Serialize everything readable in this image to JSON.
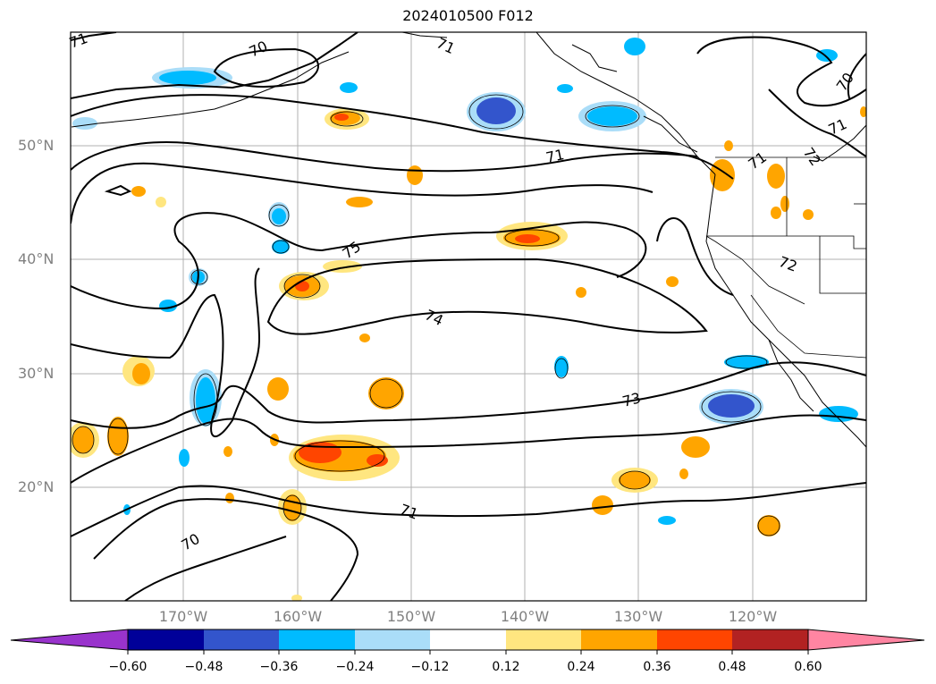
{
  "title": "2024010500 F012",
  "lat_labels": [
    "50°N",
    "40°N",
    "30°N",
    "20°N"
  ],
  "lon_labels": [
    "170°W",
    "160°W",
    "150°W",
    "140°W",
    "130°W",
    "120°W"
  ],
  "contour_labels": [
    "71",
    "70",
    "71",
    "70",
    "71",
    "71",
    "72",
    "71",
    "75",
    "74",
    "72",
    "73",
    "71",
    "70"
  ],
  "colorbar": {
    "ticks": [
      "−0.60",
      "−0.48",
      "−0.36",
      "−0.24",
      "−0.12",
      "0.12",
      "0.24",
      "0.36",
      "0.48",
      "0.60"
    ],
    "colors": [
      "#9933cc",
      "#000099",
      "#3355cc",
      "#00bbff",
      "#aaddf8",
      "#ffffff",
      "#ffe680",
      "#ffa500",
      "#ff4500",
      "#b22222",
      "#ff85a2"
    ]
  },
  "colors": {
    "light_blue": "#aaddf8",
    "cyan": "#00bbff",
    "royal_blue": "#3355cc",
    "yellow": "#ffe680",
    "orange": "#ffa500",
    "red_orange": "#ff4500"
  }
}
